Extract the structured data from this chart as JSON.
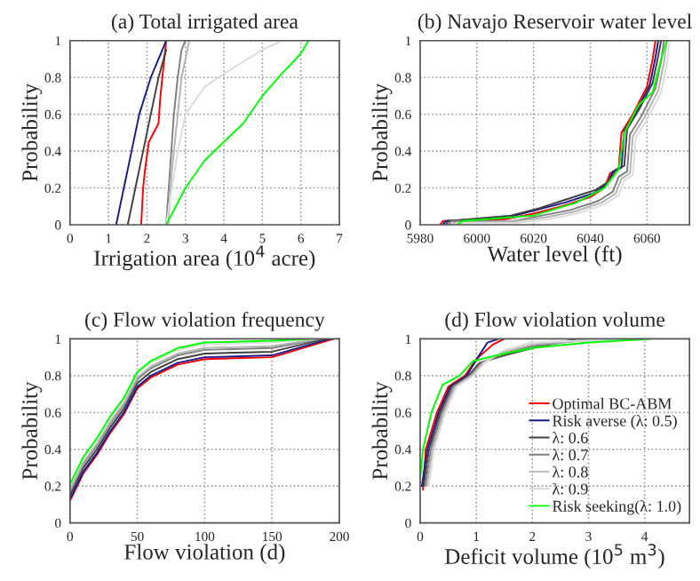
{
  "chart_data": [
    {
      "type": "line",
      "title": "(a) Total irrigated area",
      "xlabel": "Irrigation area (10$^{4}$ acre)",
      "ylabel": "Probability",
      "xlim": [
        0,
        7
      ],
      "xticks": [
        0,
        1,
        2,
        3,
        4,
        5,
        6,
        7
      ],
      "ylim": [
        0,
        1
      ],
      "yticks": [
        0,
        0.2,
        0.4,
        0.6,
        0.8,
        1
      ],
      "grid": true,
      "legend": false,
      "line_style": "solid",
      "marker": "none",
      "series": [
        {
          "color": "#ff0000",
          "x": [
            1.85,
            1.9,
            1.95,
            2.05,
            2.3,
            2.35,
            2.4,
            2.5
          ],
          "values": [
            0,
            0.2,
            0.3,
            0.45,
            0.55,
            0.7,
            0.8,
            1.0
          ]
        },
        {
          "color": "#1a1a8c",
          "x": [
            1.2,
            1.4,
            1.6,
            1.8,
            2.1,
            2.5
          ],
          "values": [
            0,
            0.2,
            0.4,
            0.6,
            0.8,
            1.0
          ]
        },
        {
          "color": "#404040",
          "x": [
            1.5,
            1.7,
            1.9,
            2.1,
            2.3,
            2.5
          ],
          "values": [
            0,
            0.2,
            0.4,
            0.6,
            0.8,
            0.95
          ]
        },
        {
          "color": "#808080",
          "x": [
            2.5,
            2.6,
            2.7,
            2.8,
            2.9,
            3.0
          ],
          "values": [
            0,
            0.3,
            0.6,
            0.8,
            0.95,
            1.0
          ]
        },
        {
          "color": "#b4b4b4",
          "x": [
            2.55,
            2.65,
            2.8,
            2.9,
            3.1
          ],
          "values": [
            0,
            0.3,
            0.6,
            0.8,
            1.0
          ]
        },
        {
          "color": "#dcdcdc",
          "x": [
            2.5,
            2.8,
            3.0,
            3.5,
            4.0,
            5.0,
            5.5
          ],
          "values": [
            0,
            0.4,
            0.6,
            0.75,
            0.82,
            0.95,
            1.0
          ]
        },
        {
          "color": "#00ff00",
          "x": [
            2.5,
            3.0,
            3.5,
            4.0,
            4.5,
            5.0,
            5.5,
            6.0,
            6.2
          ],
          "values": [
            0,
            0.2,
            0.35,
            0.45,
            0.55,
            0.7,
            0.82,
            0.93,
            1.0
          ]
        }
      ]
    },
    {
      "type": "line",
      "title": "(b) Navajo Reservoir water level",
      "xlabel": "Water level (ft)",
      "ylabel": "Probability",
      "xlim": [
        5980,
        6075
      ],
      "xticks": [
        5980,
        6000,
        6020,
        6040,
        6060
      ],
      "ylim": [
        0,
        1
      ],
      "yticks": [
        0,
        0.2,
        0.4,
        0.6,
        0.8,
        1
      ],
      "grid": true,
      "legend": false,
      "line_style": "solid",
      "marker": "none",
      "series": [
        {
          "color": "#ff0000",
          "x": [
            5987,
            5988,
            6010,
            6020,
            6030,
            6040,
            6045,
            6047,
            6050,
            6051,
            6055,
            6060,
            6062,
            6063
          ],
          "values": [
            0,
            0.02,
            0.03,
            0.06,
            0.1,
            0.15,
            0.2,
            0.28,
            0.3,
            0.5,
            0.6,
            0.75,
            0.9,
            1.0
          ]
        },
        {
          "color": "#1a1a8c",
          "x": [
            5988,
            5989,
            6011,
            6021,
            6031,
            6041,
            6046,
            6048,
            6051,
            6052,
            6056,
            6061,
            6063,
            6064
          ],
          "values": [
            0,
            0.02,
            0.04,
            0.08,
            0.12,
            0.17,
            0.22,
            0.29,
            0.31,
            0.51,
            0.61,
            0.76,
            0.91,
            1.0
          ]
        },
        {
          "color": "#404040",
          "x": [
            5989,
            5990,
            6012,
            6022,
            6032,
            6042,
            6047,
            6049,
            6052,
            6053,
            6057,
            6062,
            6064,
            6065
          ],
          "values": [
            0,
            0.02,
            0.05,
            0.09,
            0.14,
            0.19,
            0.24,
            0.3,
            0.32,
            0.52,
            0.62,
            0.77,
            0.92,
            1.0
          ]
        },
        {
          "color": "#808080",
          "x": [
            5990,
            5991,
            6013,
            6023,
            6033,
            6043,
            6048,
            6050,
            6053,
            6054,
            6058,
            6063,
            6065,
            6066
          ],
          "values": [
            0,
            0.02,
            0.02,
            0.05,
            0.08,
            0.13,
            0.18,
            0.26,
            0.29,
            0.49,
            0.59,
            0.74,
            0.89,
            1.0
          ]
        },
        {
          "color": "#b4b4b4",
          "x": [
            5991,
            5992,
            6014,
            6024,
            6034,
            6044,
            6049,
            6051,
            6054,
            6055,
            6059,
            6064,
            6066,
            6067
          ],
          "values": [
            0,
            0.01,
            0.02,
            0.04,
            0.07,
            0.12,
            0.17,
            0.25,
            0.28,
            0.48,
            0.58,
            0.73,
            0.88,
            1.0
          ]
        },
        {
          "color": "#dcdcdc",
          "x": [
            5992,
            5993,
            6015,
            6025,
            6035,
            6045,
            6050,
            6052,
            6055,
            6056,
            6060,
            6065,
            6067,
            6068
          ],
          "values": [
            0,
            0.01,
            0.01,
            0.03,
            0.06,
            0.11,
            0.16,
            0.24,
            0.27,
            0.47,
            0.57,
            0.72,
            0.87,
            1.0
          ]
        },
        {
          "color": "#00ff00",
          "x": [
            5993,
            5995,
            6020,
            6035,
            6045,
            6050,
            6052,
            6057,
            6062,
            6065,
            6067
          ],
          "values": [
            0,
            0.02,
            0.05,
            0.12,
            0.2,
            0.3,
            0.5,
            0.65,
            0.72,
            0.9,
            1.0
          ]
        }
      ]
    },
    {
      "type": "line",
      "title": "(c) Flow violation frequency",
      "xlabel": "Flow violation (d)",
      "ylabel": "Probability",
      "xlim": [
        0,
        200
      ],
      "xticks": [
        0,
        50,
        100,
        150,
        200
      ],
      "ylim": [
        0,
        1
      ],
      "yticks": [
        0,
        0.2,
        0.4,
        0.6,
        0.8,
        1
      ],
      "grid": true,
      "legend": false,
      "line_style": "solid",
      "marker": "none",
      "series": [
        {
          "color": "#ff0000",
          "x": [
            0,
            10,
            20,
            30,
            40,
            50,
            60,
            80,
            100,
            150,
            196
          ],
          "values": [
            0.12,
            0.27,
            0.37,
            0.49,
            0.59,
            0.73,
            0.79,
            0.86,
            0.89,
            0.9,
            1.0
          ]
        },
        {
          "color": "#1a1a8c",
          "x": [
            0,
            10,
            20,
            30,
            40,
            50,
            60,
            80,
            100,
            150,
            193
          ],
          "values": [
            0.13,
            0.28,
            0.38,
            0.5,
            0.6,
            0.74,
            0.8,
            0.87,
            0.9,
            0.91,
            1.0
          ]
        },
        {
          "color": "#404040",
          "x": [
            0,
            10,
            20,
            30,
            40,
            50,
            60,
            80,
            100,
            150,
            190
          ],
          "values": [
            0.15,
            0.3,
            0.4,
            0.52,
            0.62,
            0.76,
            0.82,
            0.89,
            0.92,
            0.93,
            1.0
          ]
        },
        {
          "color": "#808080",
          "x": [
            0,
            10,
            20,
            30,
            40,
            50,
            60,
            80,
            100,
            150,
            187
          ],
          "values": [
            0.17,
            0.32,
            0.42,
            0.54,
            0.64,
            0.78,
            0.84,
            0.91,
            0.94,
            0.95,
            1.0
          ]
        },
        {
          "color": "#b4b4b4",
          "x": [
            0,
            10,
            20,
            30,
            40,
            50,
            60,
            80,
            100,
            150,
            184
          ],
          "values": [
            0.18,
            0.33,
            0.43,
            0.55,
            0.65,
            0.79,
            0.85,
            0.92,
            0.95,
            0.96,
            1.0
          ]
        },
        {
          "color": "#dcdcdc",
          "x": [
            0,
            10,
            20,
            30,
            40,
            50,
            60,
            80,
            100,
            150,
            181
          ],
          "values": [
            0.2,
            0.35,
            0.45,
            0.57,
            0.67,
            0.81,
            0.87,
            0.94,
            0.97,
            0.98,
            1.0
          ]
        },
        {
          "color": "#00ff00",
          "x": [
            0,
            10,
            20,
            30,
            40,
            50,
            60,
            80,
            100,
            150,
            178
          ],
          "values": [
            0.21,
            0.36,
            0.46,
            0.58,
            0.68,
            0.82,
            0.88,
            0.95,
            0.98,
            0.99,
            1.0
          ]
        }
      ]
    },
    {
      "type": "line",
      "title": "(d) Flow violation volume",
      "xlabel": "Deficit volume (10$^{5}$ m$^{3}$)",
      "ylabel": "Probability",
      "xlim": [
        0,
        4.8
      ],
      "xticks": [
        0,
        1,
        2,
        3,
        4
      ],
      "ylim": [
        0,
        1
      ],
      "yticks": [
        0,
        0.2,
        0.4,
        0.6,
        0.8,
        1
      ],
      "grid": true,
      "legend": "bottom right",
      "line_style": "solid",
      "marker": "none",
      "series": [
        {
          "name": "Optimal BC-ABM",
          "color": "#ff0000",
          "x": [
            0.05,
            0.1,
            0.3,
            0.5,
            0.8,
            1.0,
            1.3,
            1.5
          ],
          "values": [
            0.18,
            0.4,
            0.6,
            0.74,
            0.8,
            0.89,
            0.97,
            1.0
          ]
        },
        {
          "name": "Risk averse (λ: 0.5)",
          "color": "#1a1a8c",
          "x": [
            0.03,
            0.13,
            0.33,
            0.53,
            0.83,
            1.03,
            1.2,
            1.4
          ],
          "values": [
            0.2,
            0.4,
            0.6,
            0.74,
            0.8,
            0.9,
            0.98,
            1.0
          ]
        },
        {
          "name": "λ: 0.6",
          "color": "#404040",
          "x": [
            0.06,
            0.16,
            0.36,
            0.56,
            0.86,
            1.06,
            1.5,
            2.0,
            2.8
          ],
          "values": [
            0.2,
            0.4,
            0.6,
            0.74,
            0.8,
            0.87,
            0.91,
            0.95,
            1.0
          ]
        },
        {
          "name": "λ: 0.7",
          "color": "#808080",
          "x": [
            0.09,
            0.19,
            0.39,
            0.59,
            0.89,
            1.09,
            1.5,
            2.0,
            3.1
          ],
          "values": [
            0.2,
            0.4,
            0.6,
            0.74,
            0.8,
            0.87,
            0.92,
            0.96,
            1.0
          ]
        },
        {
          "name": "λ: 0.8",
          "color": "#b4b4b4",
          "x": [
            0.12,
            0.22,
            0.42,
            0.62,
            0.92,
            1.12,
            1.5,
            2.0,
            3.4
          ],
          "values": [
            0.2,
            0.4,
            0.6,
            0.74,
            0.8,
            0.87,
            0.93,
            0.97,
            1.0
          ]
        },
        {
          "name": "λ: 0.9",
          "color": "#dcdcdc",
          "x": [
            0.15,
            0.25,
            0.45,
            0.65,
            0.95,
            1.15,
            1.5,
            2.0,
            3.7
          ],
          "values": [
            0.2,
            0.4,
            0.6,
            0.74,
            0.8,
            0.87,
            0.94,
            0.98,
            1.0
          ]
        },
        {
          "name": "Risk seeking(λ: 1.0)",
          "color": "#00ff00",
          "x": [
            0,
            0.05,
            0.2,
            0.4,
            0.7,
            0.95,
            1.5,
            2.0,
            3.0,
            4.1
          ],
          "values": [
            0.24,
            0.4,
            0.6,
            0.75,
            0.8,
            0.88,
            0.92,
            0.95,
            0.98,
            1.0
          ]
        }
      ]
    }
  ]
}
